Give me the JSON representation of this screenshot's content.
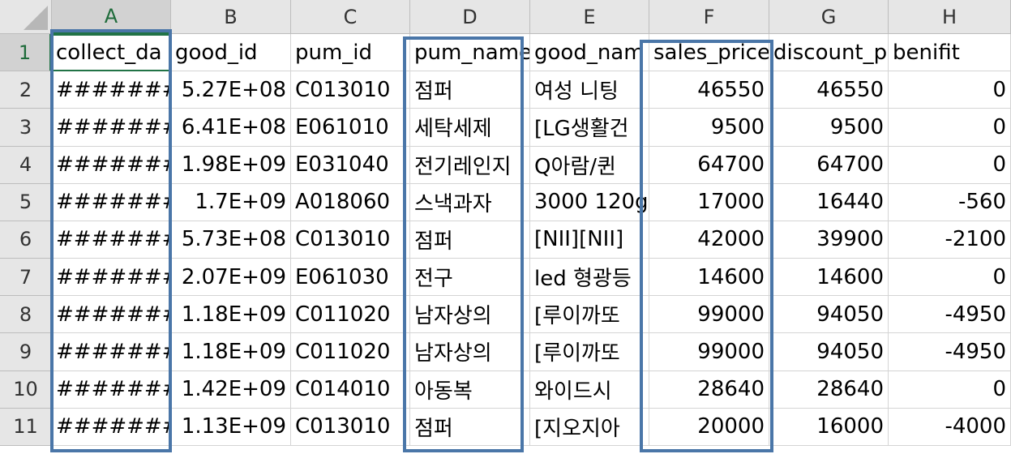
{
  "columns": [
    "A",
    "B",
    "C",
    "D",
    "E",
    "F",
    "G",
    "H"
  ],
  "row_numbers": [
    "1",
    "2",
    "3",
    "4",
    "5",
    "6",
    "7",
    "8",
    "9",
    "10",
    "11"
  ],
  "header_row": [
    "collect_da",
    "good_id",
    "pum_id",
    "pum_name",
    "good_nam",
    "sales_price",
    "discount_p",
    "benifit"
  ],
  "rows": [
    [
      "#######",
      "5.27E+08",
      "C013010",
      "점퍼",
      "여성 니팅",
      "46550",
      "46550",
      "0"
    ],
    [
      "#######",
      "6.41E+08",
      "E061010",
      "세탁세제",
      "[LG생활건",
      "9500",
      "9500",
      "0"
    ],
    [
      "#######",
      "1.98E+09",
      "E031040",
      "전기레인지",
      "Q아람/퀸",
      "64700",
      "64700",
      "0"
    ],
    [
      "#######",
      "1.7E+09",
      "A018060",
      "스낵과자",
      "3000 120g",
      "17000",
      "16440",
      "-560"
    ],
    [
      "#######",
      "5.73E+08",
      "C013010",
      "점퍼",
      "[NII][NII]",
      "42000",
      "39900",
      "-2100"
    ],
    [
      "#######",
      "2.07E+09",
      "E061030",
      "전구",
      "led 형광등",
      "14600",
      "14600",
      "0"
    ],
    [
      "#######",
      "1.18E+09",
      "C011020",
      "남자상의",
      "[루이까또",
      "99000",
      "94050",
      "-4950"
    ],
    [
      "#######",
      "1.18E+09",
      "C011020",
      "남자상의",
      "[루이까또",
      "99000",
      "94050",
      "-4950"
    ],
    [
      "#######",
      "1.42E+09",
      "C014010",
      "아동복",
      "와이드시",
      "28640",
      "28640",
      "0"
    ],
    [
      "#######",
      "1.13E+09",
      "C013010",
      "점퍼",
      "[지오지아",
      "20000",
      "16000",
      "-4000"
    ]
  ],
  "active_cell": "A1",
  "highlighted_columns": [
    "A",
    "D",
    "F"
  ],
  "colors": {
    "selection_green": "#217346",
    "highlight_blue": "#4a76a8",
    "header_gray": "#e6e6e6"
  }
}
